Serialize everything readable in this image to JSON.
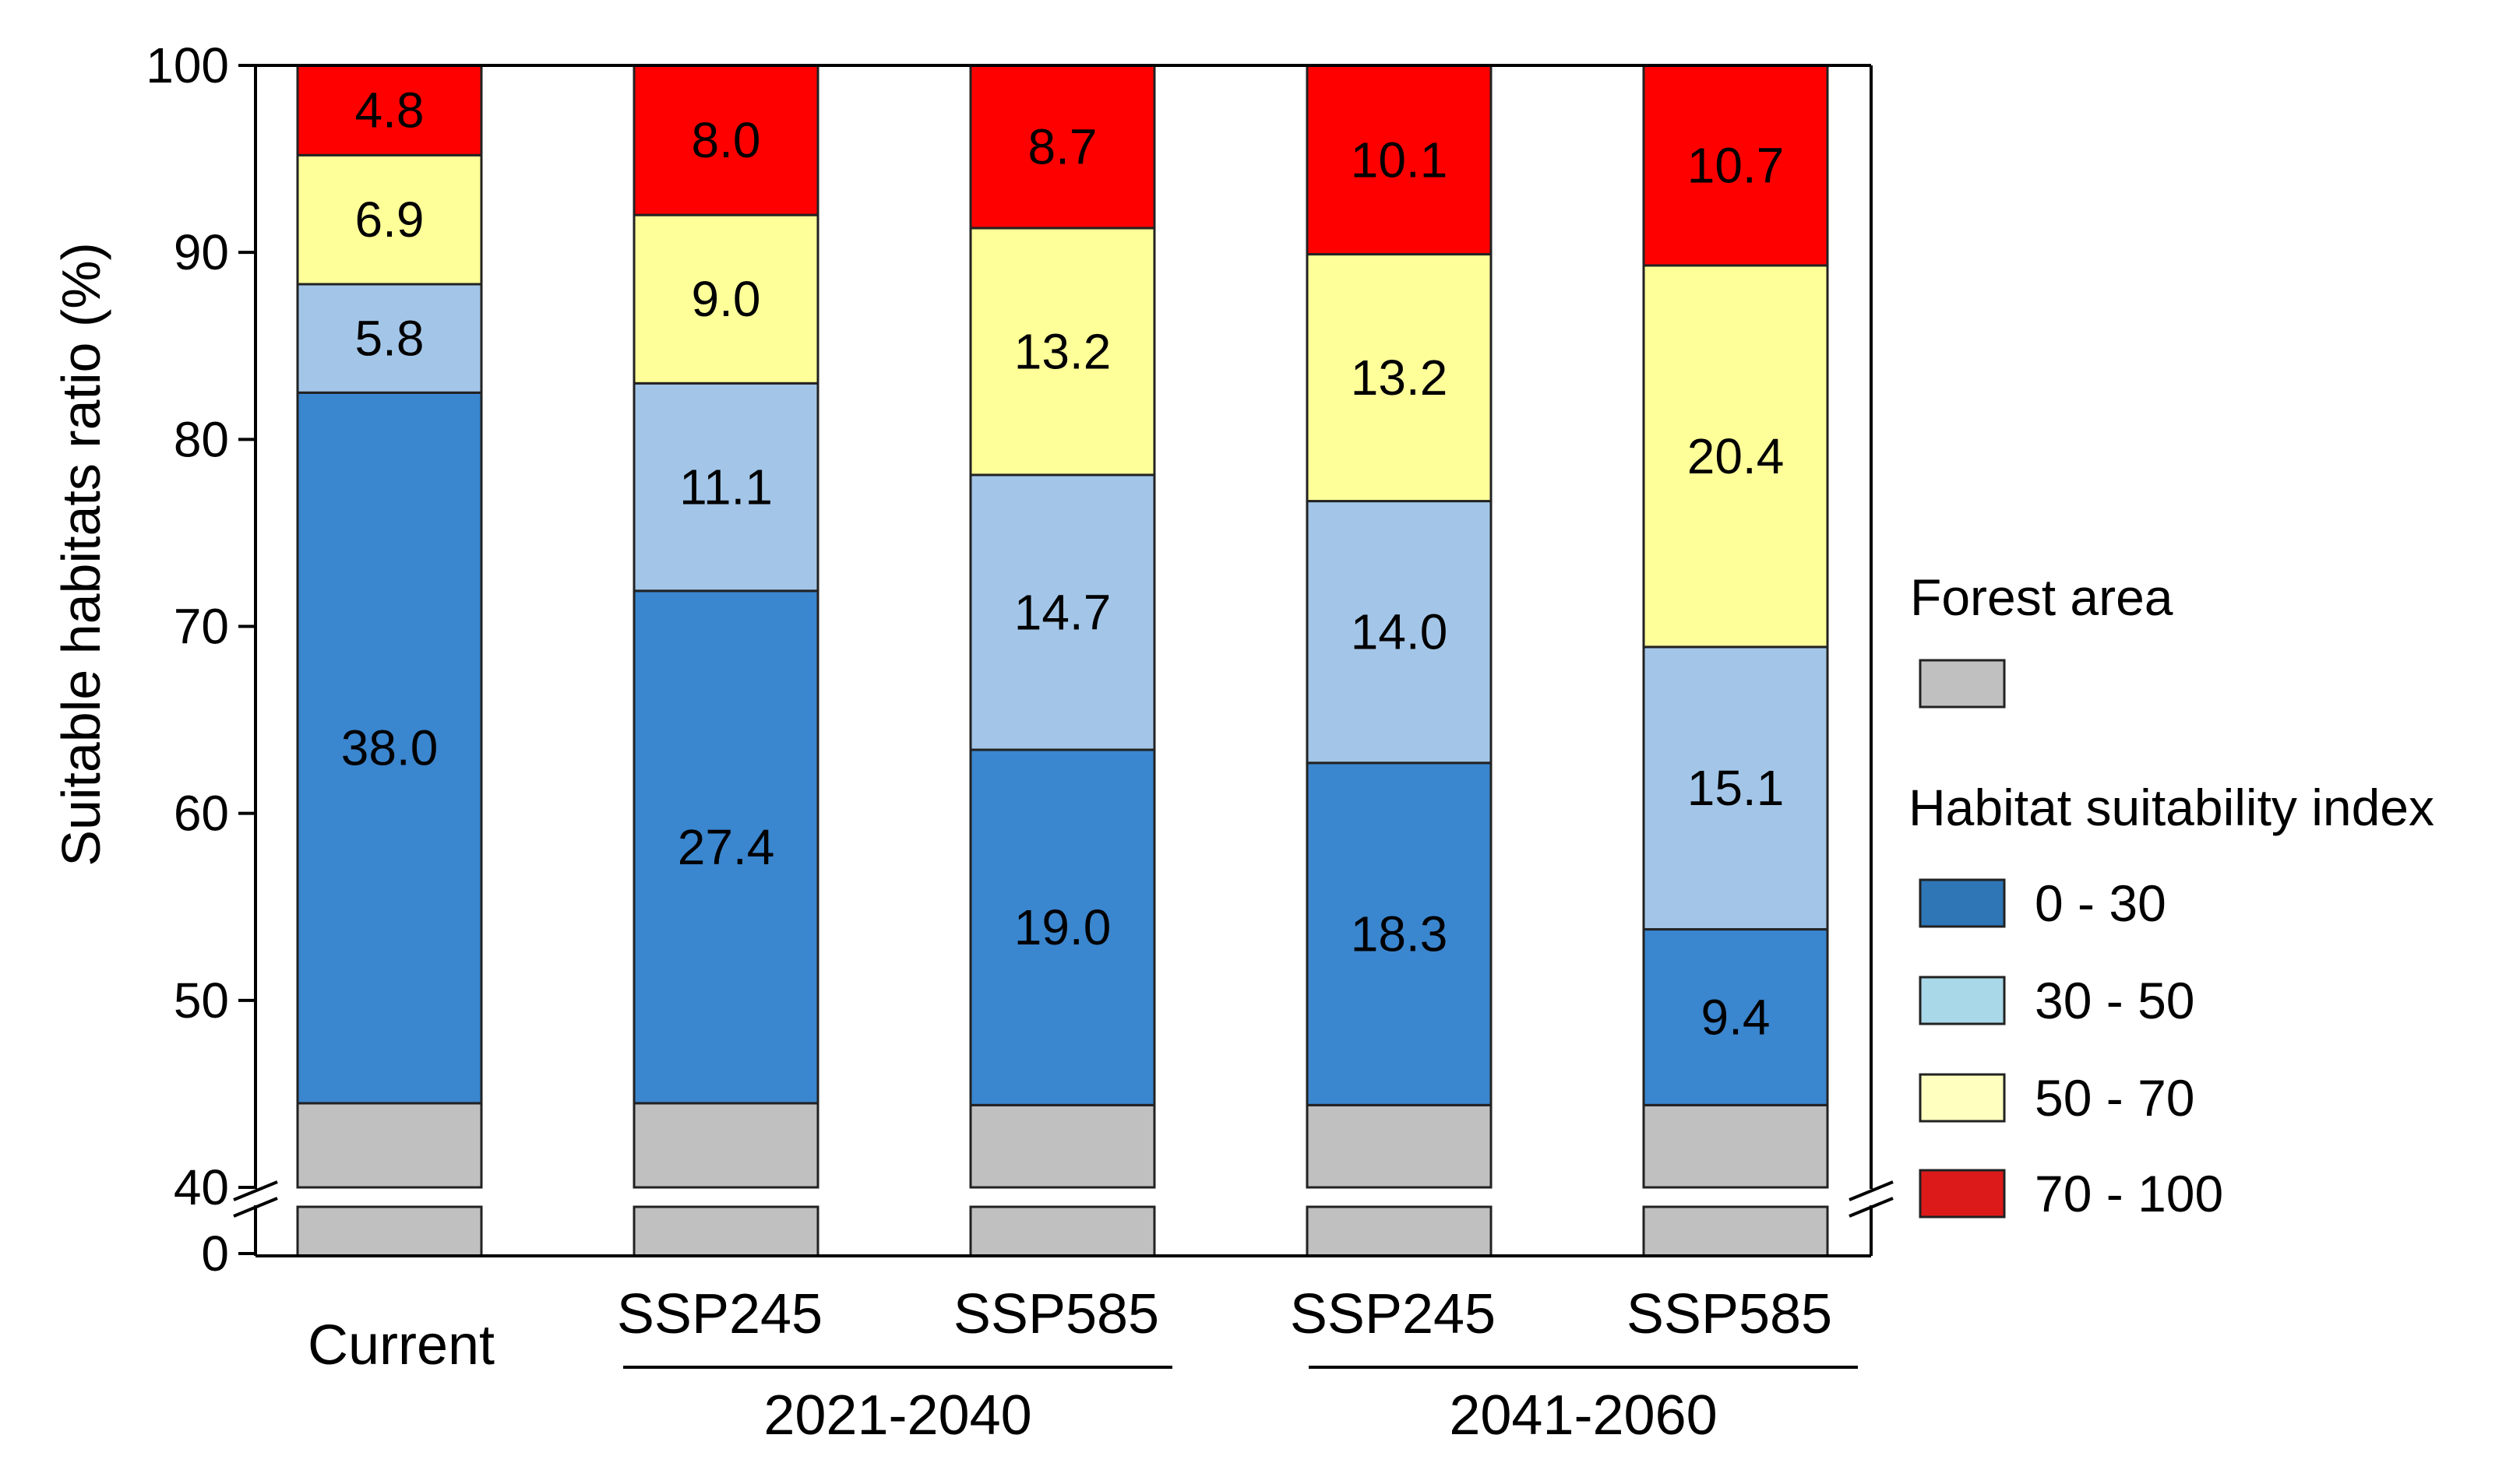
{
  "chart_data": {
    "type": "bar",
    "stacked": true,
    "title": "",
    "ylabel": "Suitable habitats ratio (%)",
    "xlabel": "",
    "ylim": [
      0,
      100
    ],
    "axis_break": [
      0,
      40
    ],
    "yticks_upper": [
      "40",
      "50",
      "60",
      "70",
      "80",
      "90",
      "100"
    ],
    "ytick_lower": "0",
    "categories": [
      "Current",
      "SSP245",
      "SSP585",
      "SSP245",
      "SSP585"
    ],
    "groups": [
      {
        "label": "2021-2040",
        "categories": [
          1,
          2
        ]
      },
      {
        "label": "2041-2060",
        "categories": [
          3,
          4
        ]
      }
    ],
    "forest_area_top": [
      44.5,
      44.5,
      44.4,
      44.4,
      44.4
    ],
    "series": [
      {
        "name": "0 - 30",
        "color": "#3a86cf",
        "values": [
          38.0,
          27.4,
          19.0,
          18.3,
          9.4
        ],
        "labels": [
          "38.0",
          "27.4",
          "19.0",
          "18.3",
          "9.4"
        ]
      },
      {
        "name": "30 - 50",
        "color": "#a3c6e8",
        "values": [
          5.8,
          11.1,
          14.7,
          14.0,
          15.1
        ],
        "labels": [
          "5.8",
          "11.1",
          "14.7",
          "14.0",
          "15.1"
        ]
      },
      {
        "name": "50 - 70",
        "color": "#ffff99",
        "values": [
          6.9,
          9.0,
          13.2,
          13.2,
          20.4
        ],
        "labels": [
          "6.9",
          "9.0",
          "13.2",
          "13.2",
          "20.4"
        ]
      },
      {
        "name": "70 - 100",
        "color": "#ff0000",
        "values": [
          4.8,
          8.0,
          8.7,
          10.1,
          10.7
        ],
        "labels": [
          "4.8",
          "8.0",
          "8.7",
          "10.1",
          "10.7"
        ]
      }
    ],
    "legend": {
      "position": "right",
      "forest_title": "Forest area",
      "forest_color": "#c0c0c0",
      "hsi_title": "Habitat suitability index",
      "items": [
        {
          "label": "0 - 30",
          "color": "#2e76b6"
        },
        {
          "label": "30 - 50",
          "color": "#a9d8e8"
        },
        {
          "label": "50 - 70",
          "color": "#ffffc0"
        },
        {
          "label": "70 - 100",
          "color": "#dd1a1a"
        }
      ]
    }
  }
}
